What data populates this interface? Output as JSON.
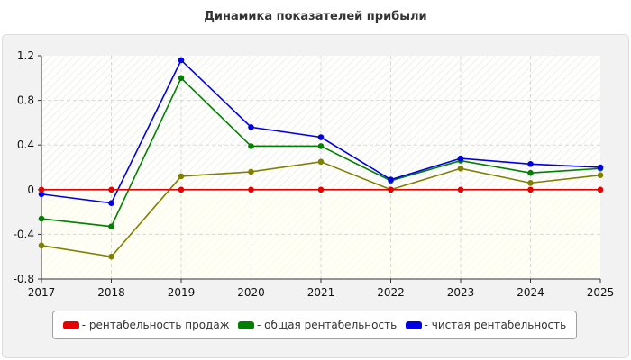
{
  "title": "Динамика показателей прибыли",
  "chart_data": {
    "type": "line",
    "x": [
      2017,
      2018,
      2019,
      2020,
      2021,
      2022,
      2023,
      2024,
      2025
    ],
    "xticks": [
      "2017",
      "2018",
      "2019",
      "2020",
      "2021",
      "2022",
      "2023",
      "2024",
      "2025"
    ],
    "yticks": [
      "-0.8",
      "-0.4",
      "0",
      "0.4",
      "0.8",
      "1.2"
    ],
    "ylim": [
      -0.8,
      1.2
    ],
    "grid": true,
    "legend_position": "bottom",
    "series": [
      {
        "name": "- рентабельность продаж",
        "color": "#e60000",
        "values": [
          0,
          0,
          0,
          0,
          0,
          0,
          0,
          0,
          0
        ]
      },
      {
        "name": "- общая рентабельность",
        "color": "#008000",
        "values": [
          -0.26,
          -0.33,
          1.0,
          0.39,
          0.39,
          0.08,
          0.26,
          0.15,
          0.19
        ]
      },
      {
        "name": "- чистая рентабельность",
        "color": "#0000e0",
        "values": [
          -0.04,
          -0.12,
          1.16,
          0.56,
          0.47,
          0.09,
          0.28,
          0.23,
          0.2
        ]
      },
      {
        "name": "",
        "color": "#808000",
        "values": [
          -0.5,
          -0.6,
          0.12,
          0.16,
          0.25,
          0.0,
          0.19,
          0.06,
          0.13
        ]
      }
    ]
  }
}
